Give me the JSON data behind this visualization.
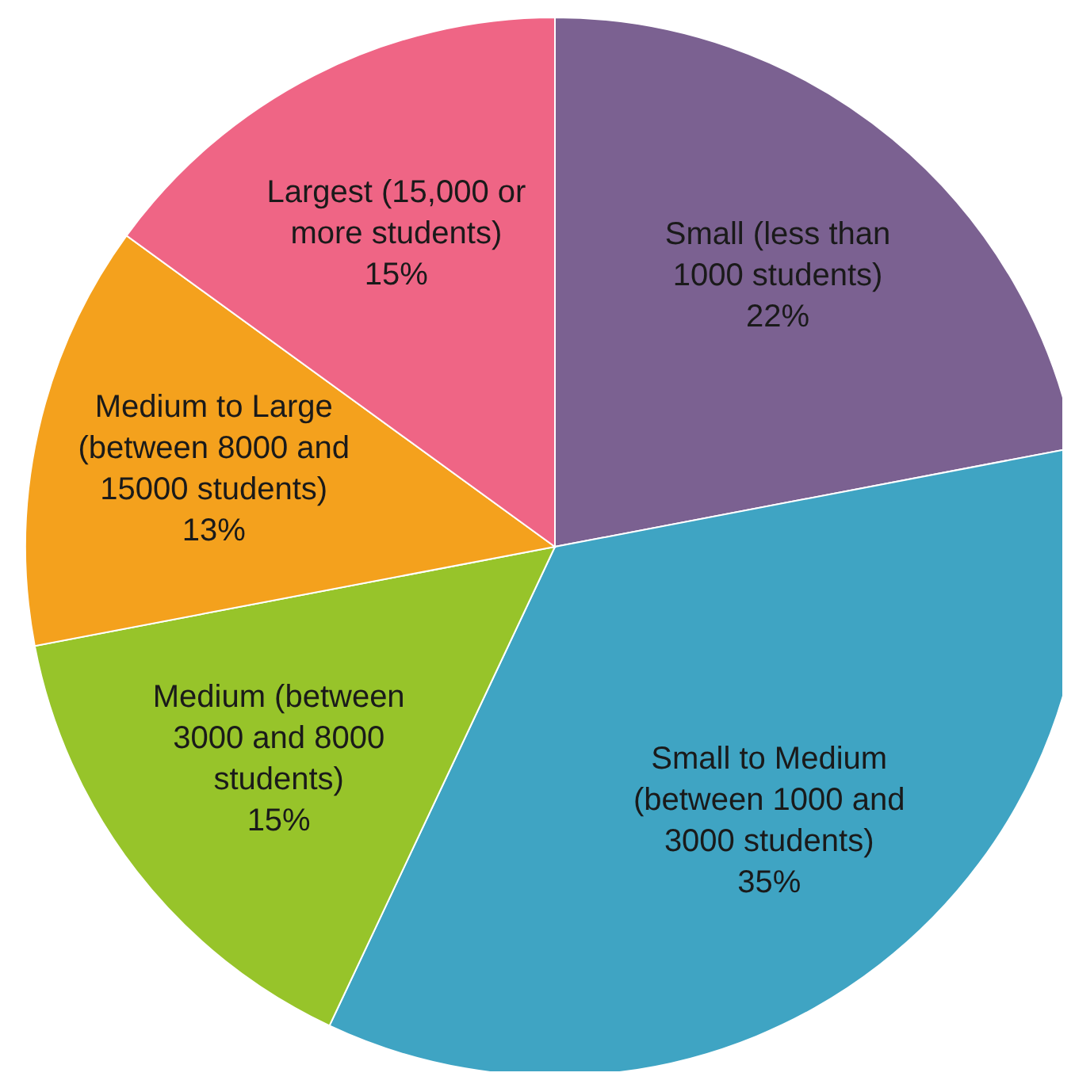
{
  "chart_data": {
    "type": "pie",
    "categories": [
      "Small (less than 1000 students)",
      "Small to Medium (between 1000 and 3000 students)",
      "Medium (between 3000 and 8000 students)",
      "Medium to Large (between 8000 and 15000 students)",
      "Largest (15,000 or more students)"
    ],
    "values": [
      22,
      35,
      15,
      13,
      15
    ],
    "value_labels": [
      "22%",
      "35%",
      "15%",
      "13%",
      "15%"
    ],
    "colors": [
      "#7b6191",
      "#3fa4c3",
      "#97c42a",
      "#f4a11d",
      "#ef6585"
    ]
  }
}
